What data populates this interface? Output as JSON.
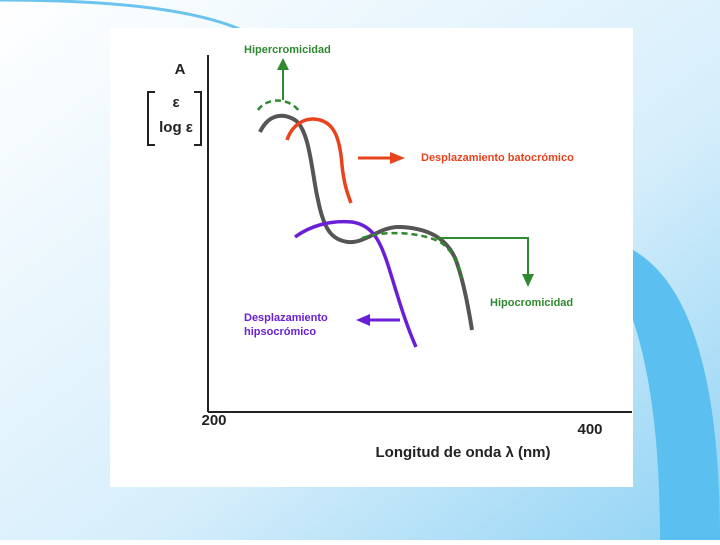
{
  "y_axis": {
    "label": "A",
    "bracket_lines": [
      "ε",
      "log ε"
    ]
  },
  "x_axis": {
    "label": "Longitud de onda λ (nm)",
    "tick_labels": [
      "200",
      "400"
    ]
  },
  "annotations": {
    "hyperchromic": "Hipercromicidad",
    "bathochromic": "Desplazamiento batocrómico",
    "hypochromic": "Hipocromicidad",
    "hypsochromic": [
      "Desplazamiento",
      "hipsocrómico"
    ]
  }
}
